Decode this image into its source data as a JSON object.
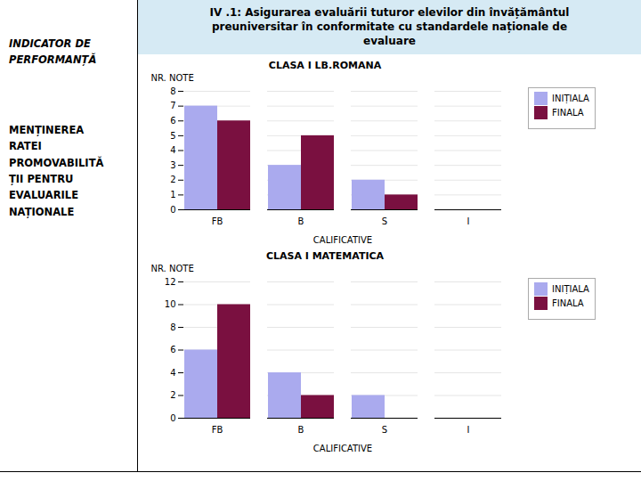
{
  "title": "IV .1: Asigurarea evaluării tuturor elevilor din învățământul\npreuniversitar în conformitate cu standardele naționale de\nevaluare",
  "annotations": [
    [
      "INDICATOR DE",
      "PERFORMANȚĂ"
    ],
    [
      "MENȚINEREA",
      "RATEI",
      "PROMOVABILITĂ",
      "ȚII PENTRU",
      "EVALUARILE",
      "NAȚIONALE"
    ]
  ],
  "chart_data": [
    {
      "type": "bar",
      "title": "CLASA I LB.ROMANA",
      "xlabel": "CALIFICATIVE",
      "ylabel": "NR. NOTE",
      "categories": [
        "FB",
        "B",
        "S",
        "I"
      ],
      "series": [
        {
          "name": "INIȚIALA",
          "color": "#aaaaee",
          "values": [
            7,
            3,
            2,
            0
          ]
        },
        {
          "name": "FINALA",
          "color": "#7a1040",
          "values": [
            6,
            5,
            1,
            0
          ]
        }
      ],
      "ylim": [
        0,
        8
      ],
      "yticks": [
        0,
        1,
        2,
        3,
        4,
        5,
        6,
        7,
        8
      ],
      "grid": true,
      "legend": "right"
    },
    {
      "type": "bar",
      "title": "CLASA I MATEMATICA",
      "xlabel": "CALIFICATIVE",
      "ylabel": "NR. NOTE",
      "categories": [
        "FB",
        "B",
        "S",
        "I"
      ],
      "series": [
        {
          "name": "INIȚIALA",
          "color": "#aaaaee",
          "values": [
            6,
            4,
            2,
            0
          ]
        },
        {
          "name": "FINALA",
          "color": "#7a1040",
          "values": [
            10,
            2,
            0,
            0
          ]
        }
      ],
      "ylim": [
        0,
        12
      ],
      "yticks": [
        0,
        2,
        4,
        6,
        8,
        10,
        12
      ],
      "grid": true,
      "legend": "right"
    }
  ]
}
